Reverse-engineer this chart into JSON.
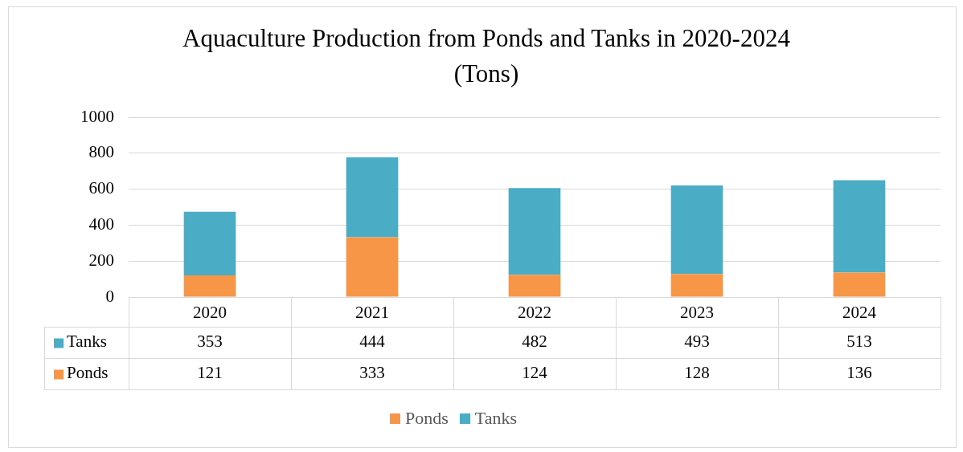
{
  "chart_data": {
    "type": "bar",
    "title": "Aquaculture Production from Ponds and Tanks in 2020-2024 (Tons)",
    "categories": [
      "2020",
      "2021",
      "2022",
      "2023",
      "2024"
    ],
    "series": [
      {
        "name": "Ponds",
        "color": "#f79646",
        "values": [
          121,
          333,
          124,
          128,
          136
        ]
      },
      {
        "name": "Tanks",
        "color": "#4bacc6",
        "values": [
          353,
          444,
          482,
          493,
          513
        ]
      }
    ],
    "stacked": true,
    "ylim": [
      0,
      1000
    ],
    "yticks": [
      0,
      200,
      400,
      600,
      800,
      1000
    ],
    "grid": "y",
    "legend": "bottom",
    "data_labels": true
  }
}
